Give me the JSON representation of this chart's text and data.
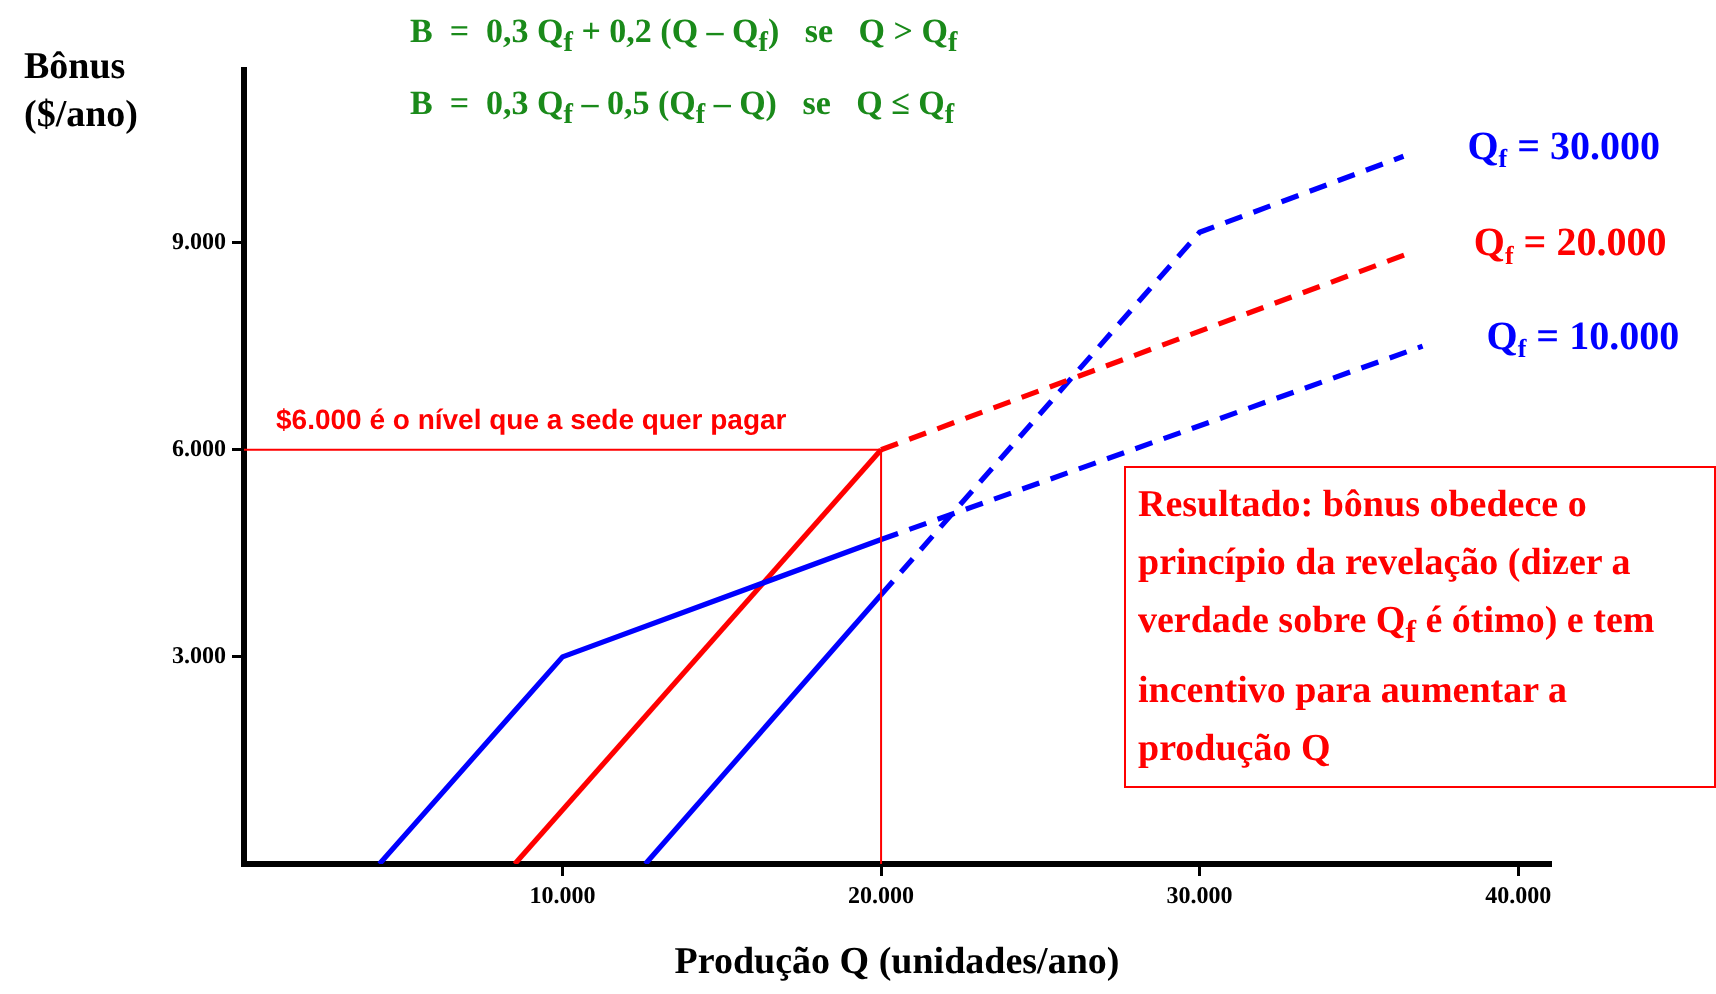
{
  "chart_data": {
    "type": "line",
    "title": "B  =  0,3 Q$_{f}$ + 0,2 (Q – Q$_{f}$)   se   Q > Q$_{f}$",
    "subtitle": "B  =  0,3 Q$_{f}$ – 0,5 (Q$_{f}$ – Q)   se   Q ≤ Q$_{f}$",
    "xlabel": "Produção Q (unidades/ano)",
    "ylabel": "Bônus ($/ano)",
    "series": [
      {
        "color": "#0000ff",
        "x": [
          4250,
          10000,
          20000
        ],
        "values": [
          0,
          3000,
          4700
        ]
      },
      {
        "name": "Q$_{f}$ = 10.000",
        "color": "#0000ff",
        "line_style": "dashed",
        "x": [
          20000,
          37000
        ],
        "values": [
          4700,
          7500
        ]
      },
      {
        "color": "#ff0000",
        "x": [
          8500,
          20000
        ],
        "values": [
          0,
          6000
        ]
      },
      {
        "name": "Q$_{f}$ = 20.000",
        "color": "#ff0000",
        "line_style": "dashed",
        "x": [
          20000,
          36600
        ],
        "values": [
          6000,
          8850
        ]
      },
      {
        "color": "#0000ff",
        "x": [
          12600,
          20000
        ],
        "values": [
          0,
          3900
        ]
      },
      {
        "name": "Q$_{f}$ = 30.000",
        "color": "#0000ff",
        "line_style": "dashed",
        "x": [
          20000,
          30000,
          36400
        ],
        "values": [
          3900,
          9150,
          10250
        ]
      }
    ],
    "xlim": [
      0,
      41000
    ],
    "ylim": [
      0,
      11500
    ],
    "xticks": [
      {
        "value": 10000,
        "label": "10.000"
      },
      {
        "value": 20000,
        "label": "20.000"
      },
      {
        "value": 30000,
        "label": "30.000"
      },
      {
        "value": 40000,
        "label": "40.000"
      }
    ],
    "yticks": [
      {
        "value": 3000,
        "label": "3.000"
      },
      {
        "value": 6000,
        "label": "6.000"
      },
      {
        "value": 9000,
        "label": "9.000"
      }
    ],
    "ref_lines": [
      {
        "axis": "y",
        "value": 6000,
        "label": "$6.000 é o nível que a sede quer pagar",
        "color": "#ff0000"
      },
      {
        "axis": "x",
        "value": 20000,
        "color": "#ff0000"
      }
    ],
    "annotations": [
      "Resultado: bônus obedece o princípio da revelação (dizer a verdade sobre Q$_{f}$ é ótimo) e tem incentivo para aumentar a produção Q"
    ],
    "grid": false,
    "legend": false,
    "marker": "none"
  }
}
